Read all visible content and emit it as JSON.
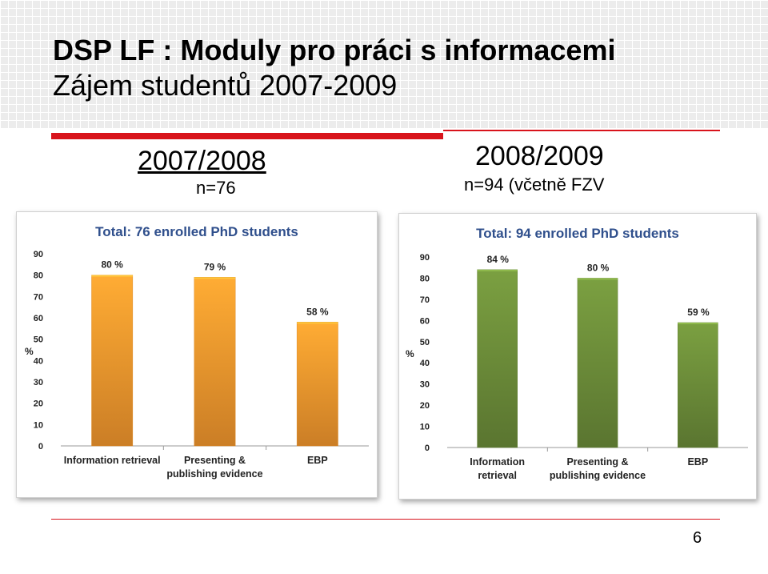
{
  "slide": {
    "title_line1": "DSP LF : Moduly pro práci s informacemi",
    "title_line2": "Zájem studentů 2007-2009",
    "page_number": "6",
    "accent_color": "#d8141c"
  },
  "left": {
    "year": "2007/2008",
    "n": "n=76"
  },
  "right": {
    "year": "2008/2009",
    "n": "n=94 (včetně FZV"
  },
  "chart_data": [
    {
      "type": "bar",
      "title": "Total: 76 enrolled PhD students",
      "ylabel": "%",
      "ylim": [
        0,
        90
      ],
      "yticks": [
        0,
        10,
        20,
        30,
        40,
        50,
        60,
        70,
        80,
        90
      ],
      "categories": [
        [
          "Information retrieval"
        ],
        [
          "Presenting &",
          "publishing evidence"
        ],
        [
          "EBP"
        ]
      ],
      "values": [
        80,
        79,
        58
      ],
      "value_labels": [
        "80 %",
        "79 %",
        "58 %"
      ],
      "color": "#f79a2e",
      "grid": false
    },
    {
      "type": "bar",
      "title": "Total: 94 enrolled PhD students",
      "ylabel": "%",
      "ylim": [
        0,
        90
      ],
      "yticks": [
        0,
        10,
        20,
        30,
        40,
        50,
        60,
        70,
        80,
        90
      ],
      "categories": [
        [
          "Information",
          "retrieval"
        ],
        [
          "Presenting &",
          "publishing evidence"
        ],
        [
          "EBP"
        ]
      ],
      "values": [
        84,
        80,
        59
      ],
      "value_labels": [
        "84 %",
        "80 %",
        "59 %"
      ],
      "color": "#6e8f3a",
      "grid": false
    }
  ]
}
